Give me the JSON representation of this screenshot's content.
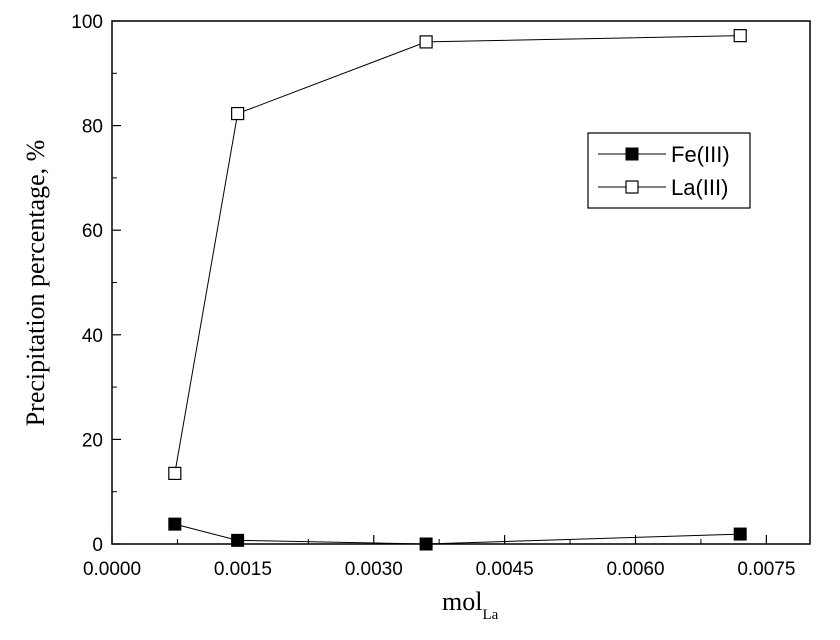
{
  "chart_data": {
    "type": "line",
    "xlabel": "mol",
    "xlabel_subscript": "La",
    "ylabel": "Precipitation percentage, %",
    "xlim": [
      0.0,
      0.008
    ],
    "ylim": [
      0,
      100
    ],
    "xticks": [
      0.0,
      0.0015,
      0.003,
      0.0045,
      0.006,
      0.0075
    ],
    "xtick_labels": [
      "0.0000",
      "0.0015",
      "0.0030",
      "0.0045",
      "0.0060",
      "0.0075"
    ],
    "yticks": [
      0,
      20,
      40,
      60,
      80,
      100
    ],
    "ytick_labels": [
      "0",
      "20",
      "40",
      "60",
      "80",
      "100"
    ],
    "legend_position": "upper-right",
    "grid": false,
    "series": [
      {
        "name": "Fe(III)",
        "marker": "filled-square",
        "color": "#000000",
        "x": [
          0.00072,
          0.00144,
          0.0036,
          0.0072
        ],
        "y": [
          3.8,
          0.7,
          0.0,
          1.9
        ]
      },
      {
        "name": "La(III)",
        "marker": "open-square",
        "color": "#000000",
        "x": [
          0.00072,
          0.00144,
          0.0036,
          0.0072
        ],
        "y": [
          13.5,
          82.3,
          96.0,
          97.2
        ]
      }
    ]
  }
}
